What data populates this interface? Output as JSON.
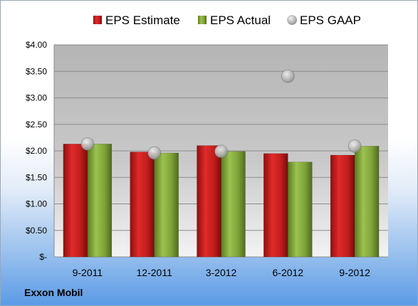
{
  "footer_label": "Exxon Mobil",
  "chart_data": {
    "type": "bar",
    "categories": [
      "9-2011",
      "12-2011",
      "3-2012",
      "6-2012",
      "9-2012"
    ],
    "series": [
      {
        "name": "EPS Estimate",
        "kind": "bar",
        "color": "#cc1f1f",
        "values": [
          2.13,
          1.98,
          2.1,
          1.95,
          1.92
        ]
      },
      {
        "name": "EPS Actual",
        "kind": "bar",
        "color": "#7fa33a",
        "values": [
          2.13,
          1.96,
          1.99,
          1.79,
          2.09
        ]
      },
      {
        "name": "EPS GAAP",
        "kind": "marker",
        "color": "#b8b8b8",
        "values": [
          2.13,
          1.96,
          1.99,
          3.41,
          2.09
        ]
      }
    ],
    "ylim": [
      0,
      4.0
    ],
    "yticks": [
      0,
      0.5,
      1.0,
      1.5,
      2.0,
      2.5,
      3.0,
      3.5,
      4.0
    ],
    "ytick_labels": [
      "$-",
      "$0.50",
      "$1.00",
      "$1.50",
      "$2.00",
      "$2.50",
      "$3.00",
      "$3.50",
      "$4.00"
    ],
    "grid": true,
    "legend_position": "top"
  }
}
